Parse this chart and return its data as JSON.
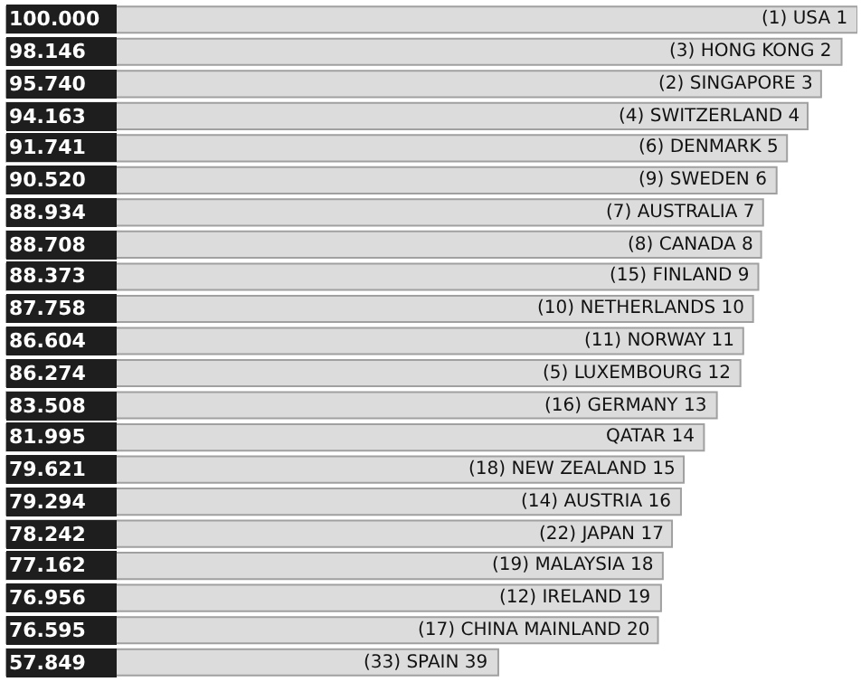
{
  "chart_data": {
    "type": "bar",
    "orientation": "horizontal",
    "data_labels": true,
    "legend": false,
    "categories": [
      "(1) USA 1",
      "(3) HONG KONG 2",
      "(2) SINGAPORE 3",
      "(4) SWITZERLAND 4",
      "(6) DENMARK 5",
      "(9) SWEDEN 6",
      "(7) AUSTRALIA 7",
      "(8) CANADA 8",
      "(15) FINLAND 9",
      "(10) NETHERLANDS 10",
      "(11) NORWAY 11",
      "(5) LUXEMBOURG 12",
      "(16) GERMANY 13",
      "QATAR 14",
      "(18) NEW ZEALAND 15",
      "(14) AUSTRIA 16",
      "(22) JAPAN 17",
      "(19) MALAYSIA 18",
      "(12) IRELAND 19",
      "(17) CHINA MAINLAND 20",
      "(33) SPAIN 39"
    ],
    "values": [
      100.0,
      98.146,
      95.74,
      94.163,
      91.741,
      90.52,
      88.934,
      88.708,
      88.373,
      87.758,
      86.604,
      86.274,
      83.508,
      81.995,
      79.621,
      79.294,
      78.242,
      77.162,
      76.956,
      76.595,
      57.849
    ],
    "value_labels": [
      "100.000",
      "98.146",
      "95.740",
      "94.163",
      "91.741",
      "90.520",
      "88.934",
      "88.708",
      "88.373",
      "87.758",
      "86.604",
      "86.274",
      "83.508",
      "81.995",
      "79.621",
      "79.294",
      "78.242",
      "77.162",
      "76.956",
      "76.595",
      "57.849"
    ],
    "color": "#dcdcdc"
  }
}
